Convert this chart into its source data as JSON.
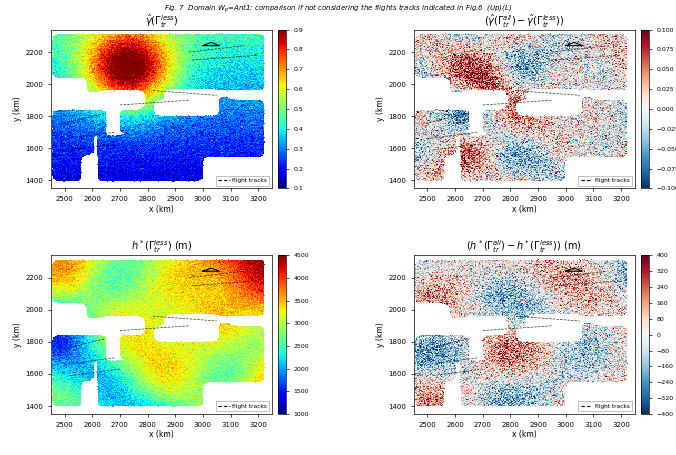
{
  "panels": [
    {
      "title": "$\\hat{\\gamma}(\\Gamma_{tr}^{less})$",
      "cmap": "jet",
      "vmin": 0.1,
      "vmax": 0.9,
      "cticks": [
        0.1,
        0.2,
        0.3,
        0.4,
        0.5,
        0.6,
        0.7,
        0.8,
        0.9
      ],
      "xlabel": "x (km)",
      "ylabel": "y (km)",
      "xticks": [
        2500,
        2600,
        2700,
        2800,
        2900,
        3000,
        3100,
        3200
      ],
      "yticks": [
        1400,
        1600,
        1800,
        2000,
        2200
      ],
      "legend": "flight tracks",
      "row": 0,
      "col": 0
    },
    {
      "title": "$(\\hat{\\gamma}(\\Gamma_{tr}^{all}) - \\hat{\\gamma}(\\Gamma_{tr}^{less}))$",
      "cmap": "RdBu_r",
      "vmin": -0.1,
      "vmax": 0.1,
      "cticks": [
        -0.1,
        -0.075,
        -0.05,
        -0.025,
        0.0,
        0.025,
        0.05,
        0.075,
        0.1
      ],
      "xlabel": "x (km)",
      "ylabel": "y (km)",
      "xticks": [
        2500,
        2600,
        2700,
        2800,
        2900,
        3000,
        3100,
        3200
      ],
      "yticks": [
        1400,
        1600,
        1800,
        2000,
        2200
      ],
      "legend": "flight tracks",
      "row": 0,
      "col": 1
    },
    {
      "title": "$h^*(\\Gamma_{tr}^{less})$ (m)",
      "cmap": "jet",
      "vmin": 1000,
      "vmax": 4500,
      "cticks": [
        1000,
        1500,
        2000,
        2500,
        3000,
        3500,
        4000,
        4500
      ],
      "xlabel": "x (km)",
      "ylabel": "y (km)",
      "xticks": [
        2500,
        2600,
        2700,
        2800,
        2900,
        3000,
        3100,
        3200
      ],
      "yticks": [
        1400,
        1600,
        1800,
        2000,
        2200
      ],
      "legend": "flight tracks",
      "row": 1,
      "col": 0
    },
    {
      "title": "$(h^*(\\Gamma_{tr}^{all}) - h^*(\\Gamma_{tr}^{less}))$ (m)",
      "cmap": "RdBu_r",
      "vmin": -400,
      "vmax": 400,
      "cticks": [
        -400,
        -320,
        -240,
        -160,
        -80,
        0,
        80,
        160,
        240,
        320,
        400
      ],
      "xlabel": "x (km)",
      "ylabel": "y (km)",
      "xticks": [
        2500,
        2600,
        2700,
        2800,
        2900,
        3000,
        3100,
        3200
      ],
      "yticks": [
        1400,
        1600,
        1800,
        2000,
        2200
      ],
      "legend": "flight tracks",
      "row": 1,
      "col": 1
    }
  ],
  "xlim": [
    2450,
    3250
  ],
  "ylim": [
    1350,
    2350
  ],
  "fig_title": "Fig. 7  Domain W$_p$=Ant1: comparison if not considering the flights tracks indicated in Fig.6  (Up)(L)"
}
